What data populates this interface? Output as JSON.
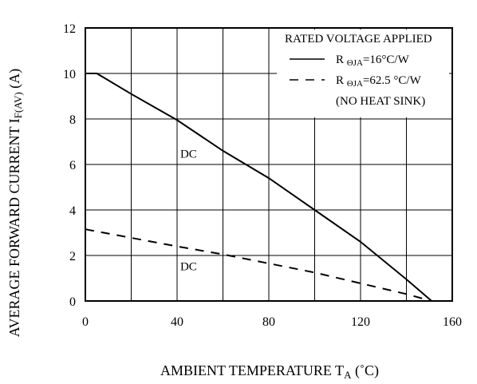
{
  "chart_data": {
    "type": "line",
    "ylabel_main": "AVERAGE FORWARD CURRENT  I",
    "ylabel_sub": "F(AV)",
    "ylabel_unit": " (A)",
    "xlabel_main": "AMBIENT TEMPERATURE  T",
    "xlabel_sub": "A",
    "xlabel_unit": " (˚C)",
    "xlim": [
      0,
      160
    ],
    "ylim": [
      0,
      12
    ],
    "grid": true,
    "minor_x_gridlines_every": 20,
    "xticks": [
      0,
      40,
      80,
      120,
      160
    ],
    "yticks": [
      0,
      2,
      4,
      6,
      8,
      10,
      12
    ],
    "legend": {
      "header": "RATED VOLTAGE APPLIED",
      "footer": "(NO HEAT SINK)",
      "placement": "top-right"
    },
    "series": [
      {
        "legend_prefix": "R ",
        "legend_sub": "ΘJA",
        "legend_value": "=16°C/W",
        "line_style": "solid",
        "color": "#000000",
        "annotation": {
          "text": "DC",
          "x": 45,
          "y": 6.3
        },
        "points": [
          [
            0,
            10
          ],
          [
            5,
            10
          ],
          [
            20,
            9.1
          ],
          [
            40,
            7.95
          ],
          [
            60,
            6.6
          ],
          [
            80,
            5.4
          ],
          [
            100,
            4.0
          ],
          [
            120,
            2.6
          ],
          [
            140,
            0.95
          ],
          [
            151,
            0
          ]
        ]
      },
      {
        "legend_prefix": "R ",
        "legend_sub": "ΘJA",
        "legend_value": "=62.5 °C/W",
        "line_style": "dashed",
        "color": "#000000",
        "annotation": {
          "text": "DC",
          "x": 45,
          "y": 1.35
        },
        "points": [
          [
            0,
            3.15
          ],
          [
            40,
            2.4
          ],
          [
            60,
            2.05
          ],
          [
            100,
            1.25
          ],
          [
            140,
            0.3
          ],
          [
            151,
            0
          ]
        ]
      }
    ]
  }
}
